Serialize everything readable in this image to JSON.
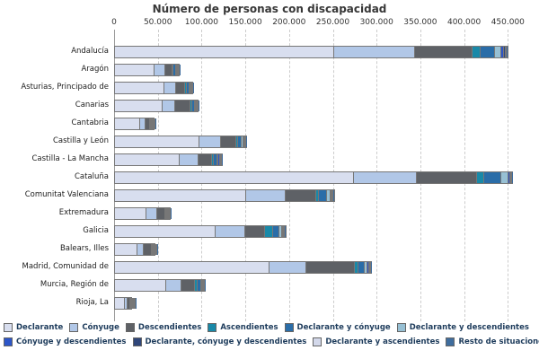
{
  "title": "Número de personas con discapacidad",
  "axis": {
    "tick_labels": [
      "0",
      "50.000",
      "100.000",
      "150.000",
      "200.000",
      "250.000",
      "300.000",
      "350.000",
      "400.000",
      "450.000"
    ],
    "tick_values": [
      0,
      50000,
      100000,
      150000,
      200000,
      250000,
      300000,
      350000,
      400000,
      450000
    ]
  },
  "chart_data": {
    "type": "bar",
    "orientation": "horizontal",
    "stacked": true,
    "title": "Número de personas con discapacidad",
    "xlim": [
      0,
      475000
    ],
    "grid": "vertical-dashed",
    "legend_position": "bottom",
    "categories": [
      "Andalucía",
      "Aragón",
      "Asturias, Principado de",
      "Canarias",
      "Cantabria",
      "Castilla y León",
      "Castilla - La Mancha",
      "Cataluña",
      "Comunitat Valenciana",
      "Extremadura",
      "Galicia",
      "Balears, Illes",
      "Madrid, Comunidad de",
      "Murcia, Región de",
      "Rioja, La"
    ],
    "series": [
      {
        "name": "Declarante",
        "color": "#D8DEEF",
        "values": [
          250000,
          45000,
          56000,
          54000,
          29000,
          97000,
          74000,
          273000,
          150000,
          36000,
          115000,
          26000,
          177000,
          59000,
          11000
        ]
      },
      {
        "name": "Cónyuge",
        "color": "#B1C7E7",
        "values": [
          93000,
          13000,
          14000,
          15000,
          6000,
          24000,
          21000,
          72000,
          45000,
          12000,
          34000,
          7000,
          42000,
          17000,
          3000
        ]
      },
      {
        "name": "Descendientes",
        "color": "#5E6166",
        "values": [
          66000,
          8000,
          10000,
          17000,
          5000,
          18000,
          16000,
          69000,
          35000,
          9000,
          22000,
          9000,
          55000,
          15000,
          3000
        ]
      },
      {
        "name": "Ascendientes",
        "color": "#1989A8",
        "values": [
          9000,
          1000,
          2000,
          2000,
          1000,
          2000,
          2000,
          8000,
          3000,
          1000,
          10000,
          500,
          4000,
          3000,
          300
        ]
      },
      {
        "name": "Declarante y cónyuge",
        "color": "#2A6DA8",
        "values": [
          16000,
          2500,
          3000,
          3000,
          1500,
          4000,
          4000,
          20000,
          9000,
          2000,
          7000,
          1500,
          7000,
          5000,
          500
        ]
      },
      {
        "name": "Declarante y descendientes",
        "color": "#97C0D4",
        "values": [
          7000,
          800,
          1000,
          1000,
          500,
          1500,
          1500,
          8000,
          4000,
          800,
          3000,
          500,
          4000,
          1000,
          300
        ]
      },
      {
        "name": "Cónyuge y descendientes",
        "color": "#2C55C8",
        "values": [
          4000,
          700,
          800,
          800,
          400,
          1200,
          1500,
          1500,
          1500,
          600,
          1500,
          400,
          1500,
          1000,
          200
        ]
      },
      {
        "name": "Declarante, cónyuge y descendientes",
        "color": "#2F4679",
        "values": [
          2000,
          500,
          600,
          600,
          300,
          800,
          1000,
          1000,
          1000,
          400,
          1000,
          300,
          1000,
          700,
          150
        ]
      },
      {
        "name": "Declarante y ascendientes",
        "color": "#D3D8EA",
        "values": [
          1000,
          300,
          300,
          300,
          150,
          500,
          500,
          500,
          500,
          200,
          500,
          150,
          500,
          300,
          80
        ]
      },
      {
        "name": "Resto de situaciones",
        "color": "#3F6D9E",
        "values": [
          1000,
          700,
          700,
          700,
          300,
          1000,
          1000,
          1000,
          1000,
          500,
          1000,
          300,
          1000,
          700,
          150
        ]
      }
    ]
  },
  "legend": {
    "rows": [
      [
        0,
        1,
        2,
        3,
        4,
        5
      ],
      [
        6,
        7,
        8,
        9
      ]
    ]
  }
}
